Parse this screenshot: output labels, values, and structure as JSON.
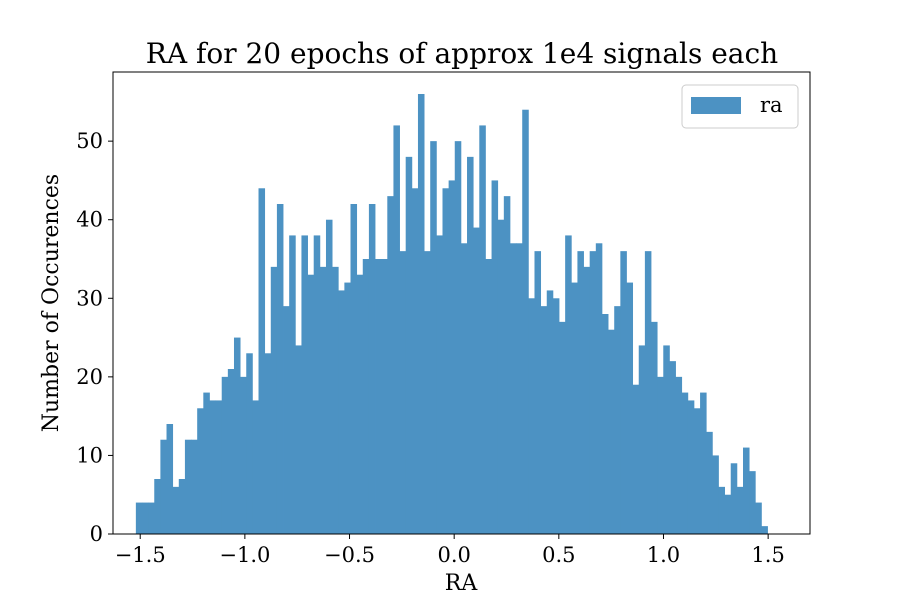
{
  "chart_data": {
    "type": "bar",
    "title": "RA for 20 epochs of approx 1e4 signals each",
    "xlabel": "RA",
    "ylabel": "Number of Occurences",
    "xlim": [
      -1.63,
      1.7
    ],
    "ylim": [
      0,
      58.8
    ],
    "xticks": [
      -1.5,
      -1.0,
      -0.5,
      0.0,
      0.5,
      1.0,
      1.5
    ],
    "xtick_labels": [
      "−1.5",
      "−1.0",
      "−0.5",
      "0.0",
      "0.5",
      "1.0",
      "1.5"
    ],
    "yticks": [
      0,
      10,
      20,
      30,
      40,
      50
    ],
    "ytick_labels": [
      "0",
      "10",
      "20",
      "30",
      "40",
      "50"
    ],
    "grid": false,
    "legend": {
      "position": "top-right",
      "entries": [
        "ra"
      ]
    },
    "bar_color": "#4c92c3",
    "bin_start": -1.5208,
    "bin_width": 0.0293,
    "series": [
      {
        "name": "ra",
        "values": [
          4,
          4,
          4,
          7,
          12,
          14,
          6,
          7,
          12,
          12,
          16,
          18,
          17,
          17,
          20,
          21,
          25,
          20,
          23,
          17,
          44,
          23,
          34,
          42,
          29,
          38,
          24,
          38,
          33,
          38,
          34,
          40,
          34,
          31,
          32,
          42,
          33,
          35,
          42,
          35,
          35,
          43,
          52,
          36,
          48,
          44,
          56,
          36,
          50,
          38,
          44,
          45,
          50,
          37,
          48,
          39,
          52,
          35,
          45,
          40,
          43,
          37,
          37,
          54,
          30,
          36,
          29,
          31,
          30,
          27,
          38,
          32,
          36,
          34,
          36,
          37,
          28,
          26,
          29,
          36,
          32,
          19,
          24,
          36,
          27,
          20,
          24,
          22,
          20,
          18,
          17,
          16,
          18,
          13,
          10,
          6,
          5,
          9,
          6,
          11,
          8,
          4,
          1
        ]
      }
    ]
  }
}
